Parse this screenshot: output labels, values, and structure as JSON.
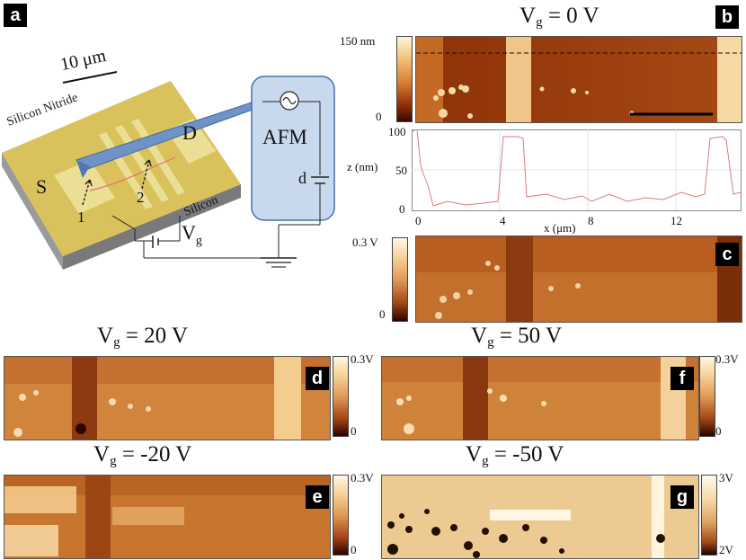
{
  "panels": {
    "a": {
      "label": "a",
      "scale_bar": "10 μm",
      "silicon_nitride": "Silicon Nitride",
      "silicon": "Silicon",
      "source": "S",
      "drain": "D",
      "point1": "1",
      "point2": "2",
      "afm": "AFM",
      "d_label": "d",
      "vg_label": "V",
      "vg_sub": "g"
    },
    "b": {
      "label": "b",
      "title_main": "V",
      "title_sub": "g",
      "title_rest": " = 0 V",
      "cbar_max": "150 nm",
      "cbar_min": "0"
    },
    "profile": {
      "ylabel": "z (nm)",
      "xlabel": "x (μm)",
      "yticks": [
        "100",
        "50",
        "0"
      ],
      "xticks": [
        "0",
        "4",
        "8",
        "12"
      ]
    },
    "c": {
      "label": "c",
      "cbar_max": "0.3 V",
      "cbar_min": "0"
    },
    "d": {
      "label": "d",
      "title_main": "V",
      "title_sub": "g",
      "title_rest": " = 20 V",
      "cbar_max": "0.3V",
      "cbar_min": "0"
    },
    "f": {
      "label": "f",
      "title_main": "V",
      "title_sub": "g",
      "title_rest": " = 50 V",
      "cbar_max": "0.3V",
      "cbar_min": "0"
    },
    "e": {
      "label": "e",
      "title_main": "V",
      "title_sub": "g",
      "title_rest": " = -20 V",
      "cbar_max": "0.3V",
      "cbar_min": "0"
    },
    "g": {
      "label": "g",
      "title_main": "V",
      "title_sub": "g",
      "title_rest": " = -50 V",
      "cbar_max": "3V",
      "cbar_min": "2V"
    }
  },
  "colors": {
    "tip": "#6f93c6",
    "afm_box": "#c8d9ee",
    "chip": "#e3cb6a",
    "profile_line": "#e07a7a"
  }
}
